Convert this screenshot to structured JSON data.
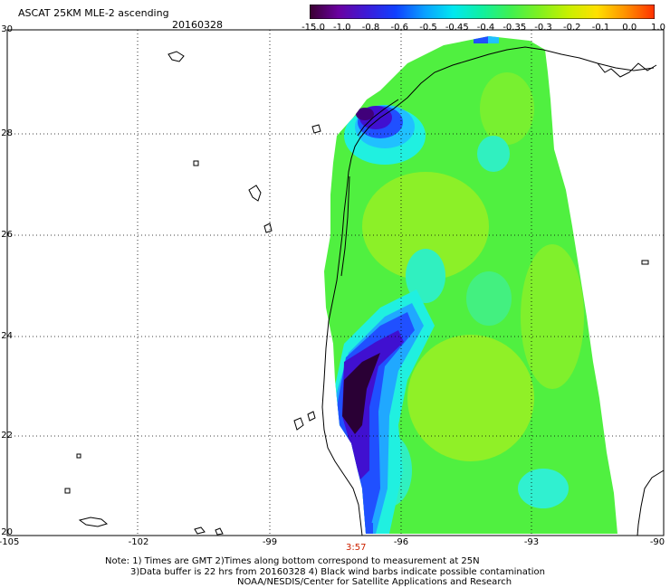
{
  "header": {
    "title": "ASCAT 25KM MLE-2 ascending",
    "date": "20160328"
  },
  "colorbar": {
    "labels": [
      "-15.0",
      "-1.0",
      "-0.8",
      "-0.6",
      "-0.5",
      "-0.45",
      "-0.4",
      "-0.35",
      "-0.3",
      "-0.2",
      "-0.1",
      "0.0",
      "1.0"
    ],
    "colors": [
      "#3a0030",
      "#6a00a0",
      "#3c1cd8",
      "#1040ff",
      "#0aa0ff",
      "#00e8f0",
      "#10f0a0",
      "#40f050",
      "#80f020",
      "#c8f000",
      "#ffe000",
      "#ff9000",
      "#ff3000"
    ]
  },
  "map": {
    "y_axis_labels": [
      "30",
      "28",
      "26",
      "24",
      "22",
      "20"
    ],
    "x_axis_labels": [
      "-105",
      "-102",
      "-99",
      "-96",
      "-93",
      "-90"
    ],
    "time_label": "3:57",
    "colors": {
      "green": "#50f040",
      "yellow_green": "#a0f020",
      "cyan": "#20f0e0",
      "aqua_green": "#30f0a0",
      "light_blue": "#20c0ff",
      "blue": "#2050ff",
      "indigo": "#4010d0",
      "purple": "#40007a",
      "dark_purple": "#2a0035"
    }
  },
  "notes": {
    "line1": "Note: 1) Times are GMT 2)Times along bottom correspond to measurement at 25N",
    "line2": "3)Data buffer is 22 hrs from 20160328 4) Black wind barbs indicate possible contamination",
    "line3": "NOAA/NESDIS/Center for Satellite Applications and Research"
  }
}
